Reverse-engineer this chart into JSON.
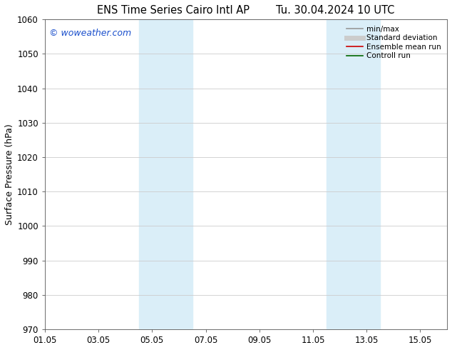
{
  "title_left": "ENS Time Series Cairo Intl AP",
  "title_right": "Tu. 30.04.2024 10 UTC",
  "ylabel": "Surface Pressure (hPa)",
  "ylim": [
    970,
    1060
  ],
  "yticks": [
    970,
    980,
    990,
    1000,
    1010,
    1020,
    1030,
    1040,
    1050,
    1060
  ],
  "xtick_labels": [
    "01.05",
    "03.05",
    "05.05",
    "07.05",
    "09.05",
    "11.05",
    "13.05",
    "15.05"
  ],
  "xtick_positions": [
    0,
    2,
    4,
    6,
    8,
    10,
    12,
    14
  ],
  "xlim": [
    0,
    15
  ],
  "shaded_bands": [
    {
      "x_start": 3.5,
      "x_end": 5.5
    },
    {
      "x_start": 10.5,
      "x_end": 12.5
    }
  ],
  "shaded_color": "#daeef8",
  "watermark": "© woweather.com",
  "watermark_color": "#1a4fcc",
  "legend_items": [
    {
      "label": "min/max",
      "color": "#999999",
      "lw": 1.2
    },
    {
      "label": "Standard deviation",
      "color": "#cccccc",
      "lw": 5
    },
    {
      "label": "Ensemble mean run",
      "color": "#cc0000",
      "lw": 1.2
    },
    {
      "label": "Controll run",
      "color": "#006600",
      "lw": 1.2
    }
  ],
  "bg_color": "#ffffff",
  "grid_color": "#cccccc",
  "title_fontsize": 10.5,
  "ylabel_fontsize": 9,
  "tick_fontsize": 8.5,
  "watermark_fontsize": 9,
  "legend_fontsize": 7.5
}
